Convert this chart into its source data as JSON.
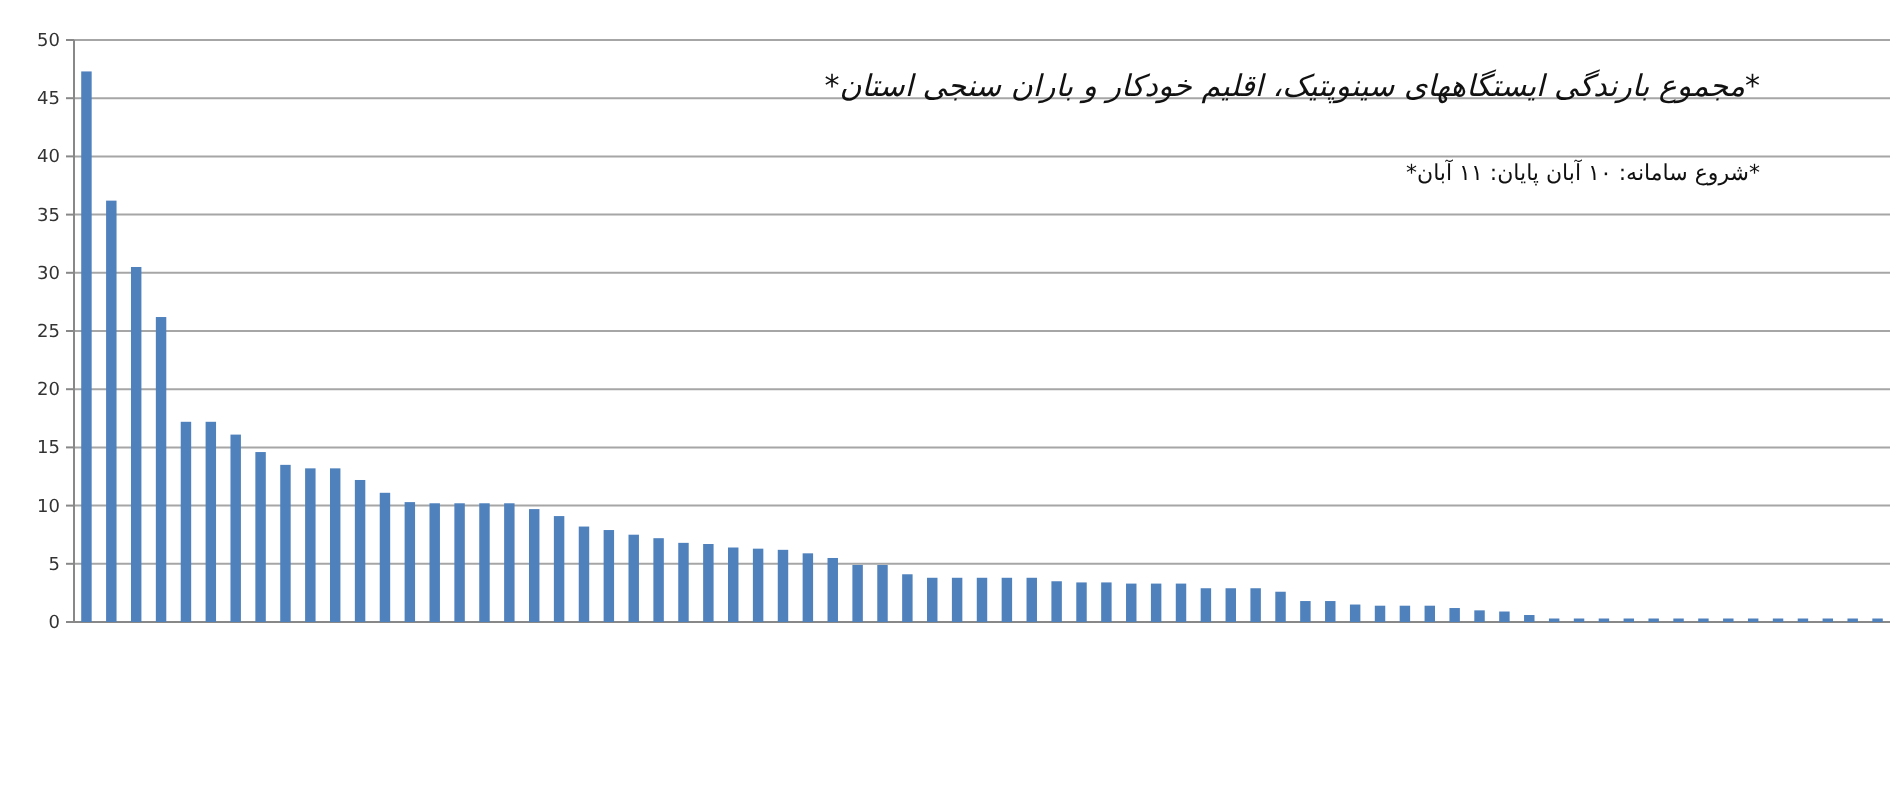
{
  "chart_data": {
    "type": "bar",
    "title": "*مجموع بارندگی ایستگاههای سینوپتیک، اقلیم خودکار و باران سنجی استان*",
    "subtitle": "*شروع سامانه: ۱۰ آبان    پایان: ۱۱ آبان*",
    "categories": [
      null,
      null,
      null,
      null,
      null,
      null,
      null,
      null,
      null,
      null,
      null,
      null,
      null,
      null,
      null,
      null,
      null,
      null,
      null,
      null,
      null,
      null,
      null,
      null,
      null,
      null,
      null,
      null,
      null,
      null,
      null,
      null,
      null,
      null,
      null,
      null,
      null,
      null,
      null,
      null,
      null,
      null,
      null,
      null,
      null,
      null,
      null,
      null,
      null,
      null,
      null,
      null,
      null,
      null,
      null,
      null,
      null,
      null,
      null,
      null,
      null,
      null,
      null,
      null,
      null,
      null,
      null,
      null,
      null,
      null,
      null,
      null,
      null
    ],
    "values": [
      47.3,
      36.2,
      30.5,
      26.2,
      17.2,
      17.2,
      16.1,
      14.6,
      13.5,
      13.2,
      13.2,
      12.2,
      11.1,
      10.3,
      10.2,
      10.2,
      10.2,
      10.2,
      9.7,
      9.1,
      8.2,
      7.9,
      7.5,
      7.2,
      6.8,
      6.7,
      6.4,
      6.3,
      6.2,
      5.9,
      5.5,
      4.9,
      4.9,
      4.1,
      3.8,
      3.8,
      3.8,
      3.8,
      3.8,
      3.5,
      3.4,
      3.4,
      3.3,
      3.3,
      3.3,
      2.9,
      2.9,
      2.9,
      2.6,
      1.8,
      1.8,
      1.5,
      1.4,
      1.4,
      1.4,
      1.2,
      1.0,
      0.9,
      0.6,
      0.3,
      0.3,
      0.3,
      0.3,
      0.3,
      0.3,
      0.3,
      0.3,
      0.3,
      0.3,
      0.3,
      0.3,
      0.3,
      0.3
    ],
    "color": "#4f81bd",
    "ylim": [
      0,
      50
    ],
    "yticks": [
      0,
      5,
      10,
      15,
      20,
      25,
      30,
      35,
      40,
      45,
      50
    ],
    "grid": "y"
  }
}
